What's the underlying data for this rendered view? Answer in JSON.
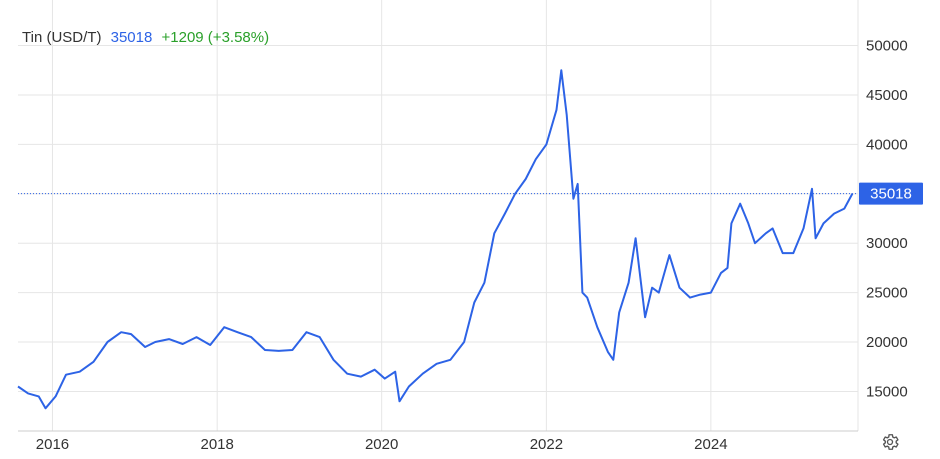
{
  "legend": {
    "name": "Tin (USD/T)",
    "price": "35018",
    "change": "+1209 (+3.58%)"
  },
  "price_tag": "35018",
  "settings_icon": "gear-icon",
  "colors": {
    "line": "#2d63e6",
    "change_positive": "#2aa02a",
    "grid": "#e6e6e6",
    "tag_bg": "#2d63e6"
  },
  "chart_data": {
    "type": "line",
    "title": "",
    "xlabel": "",
    "ylabel": "",
    "x_ticks": [
      "2016",
      "2018",
      "2020",
      "2022",
      "2024"
    ],
    "y_ticks": [
      15000,
      20000,
      25000,
      30000,
      35000,
      40000,
      45000,
      50000
    ],
    "ylim": [
      11000,
      54000
    ],
    "xlim": [
      "2015-08-01",
      "2025-10-15"
    ],
    "grid": true,
    "last_value_line": 35018,
    "series": [
      {
        "name": "Tin (USD/T)",
        "x": [
          "2015-08-01",
          "2015-09-15",
          "2015-11-01",
          "2015-12-01",
          "2016-01-15",
          "2016-03-01",
          "2016-05-01",
          "2016-07-01",
          "2016-09-01",
          "2016-11-01",
          "2016-12-15",
          "2017-02-15",
          "2017-04-01",
          "2017-06-01",
          "2017-08-01",
          "2017-10-01",
          "2017-12-01",
          "2018-02-01",
          "2018-04-01",
          "2018-06-01",
          "2018-08-01",
          "2018-10-01",
          "2018-12-01",
          "2019-02-01",
          "2019-04-01",
          "2019-06-01",
          "2019-08-01",
          "2019-10-01",
          "2019-12-01",
          "2020-01-15",
          "2020-03-01",
          "2020-03-20",
          "2020-05-01",
          "2020-07-01",
          "2020-09-01",
          "2020-11-01",
          "2021-01-01",
          "2021-02-15",
          "2021-04-01",
          "2021-05-15",
          "2021-07-01",
          "2021-08-15",
          "2021-10-01",
          "2021-11-15",
          "2022-01-01",
          "2022-02-15",
          "2022-03-08",
          "2022-04-01",
          "2022-05-01",
          "2022-05-20",
          "2022-06-10",
          "2022-07-01",
          "2022-08-15",
          "2022-10-01",
          "2022-10-25",
          "2022-11-20",
          "2023-01-01",
          "2023-02-01",
          "2023-03-15",
          "2023-04-15",
          "2023-05-15",
          "2023-07-01",
          "2023-08-15",
          "2023-10-01",
          "2023-11-15",
          "2024-01-01",
          "2024-02-15",
          "2024-03-15",
          "2024-04-01",
          "2024-05-10",
          "2024-06-15",
          "2024-07-15",
          "2024-09-01",
          "2024-10-01",
          "2024-11-15",
          "2025-01-01",
          "2025-02-15",
          "2025-03-25",
          "2025-04-10",
          "2025-05-15",
          "2025-07-01",
          "2025-08-15",
          "2025-09-20"
        ],
        "y": [
          15500,
          14800,
          14500,
          13300,
          14500,
          16700,
          17000,
          18000,
          20000,
          21000,
          20800,
          19500,
          20000,
          20300,
          19800,
          20500,
          19700,
          21500,
          21000,
          20500,
          19200,
          19100,
          19200,
          21000,
          20500,
          18200,
          16800,
          16500,
          17200,
          16300,
          17000,
          14000,
          15500,
          16800,
          17800,
          18200,
          20000,
          24000,
          26000,
          31000,
          33000,
          35000,
          36500,
          38500,
          40000,
          43500,
          47500,
          43000,
          34500,
          36000,
          25000,
          24500,
          21500,
          19000,
          18200,
          23000,
          26000,
          30500,
          22500,
          25500,
          25000,
          28800,
          25500,
          24500,
          24800,
          25000,
          27000,
          27500,
          32000,
          34000,
          32000,
          30000,
          31000,
          31500,
          29000,
          29000,
          31500,
          35500,
          30500,
          32000,
          33000,
          33500,
          35018
        ]
      }
    ]
  }
}
